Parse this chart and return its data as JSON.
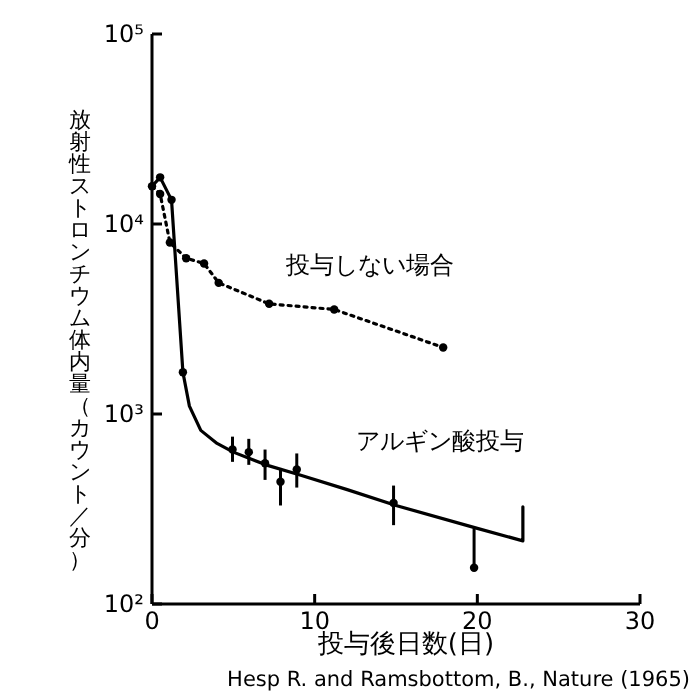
{
  "chart_data": {
    "type": "line",
    "xlabel": "投与後日数(日)",
    "ylabel": "放射性ストロンチウム体内量（カウント／分）",
    "annotations": [
      "Hesp R. and Ramsbottom, B., Nature (1965)"
    ],
    "log": "y",
    "grid": false,
    "marker": "circle",
    "xlim": [
      0,
      30
    ],
    "xticks": [
      0,
      10,
      20,
      30
    ],
    "ylim": [
      100,
      100000
    ],
    "yticks": [
      {
        "value": 100,
        "label": "10²"
      },
      {
        "value": 1000,
        "label": "10³"
      },
      {
        "value": 10000,
        "label": "10⁴"
      },
      {
        "value": 100000,
        "label": "10⁵"
      }
    ],
    "series": [
      {
        "name": "投与しない場合",
        "line_style": "dotted",
        "color": "#000000",
        "x": [
          0,
          0.5,
          1.1,
          2.1,
          3.2,
          4.1,
          7.2,
          11.2,
          17.9
        ],
        "values": [
          15800,
          14400,
          8000,
          6600,
          6200,
          4900,
          3800,
          3550,
          2240
        ]
      },
      {
        "name": "アルギン酸投与",
        "type": "line",
        "line_style": "solid",
        "marker": "none",
        "color": "#000000",
        "x": [
          0,
          0.5,
          1.2,
          1.9,
          2.3,
          3,
          4,
          5,
          7,
          9,
          12,
          15,
          20,
          22.8,
          22.8
        ],
        "values": [
          15800,
          17600,
          13400,
          1660,
          1100,
          820,
          700,
          630,
          540,
          480,
          400,
          330,
          250,
          215,
          325
        ]
      },
      {
        "type": "scatter",
        "color": "#000000",
        "x": [
          0.5,
          1.2,
          1.9,
          4.95,
          5.95,
          6.95,
          7.9,
          8.9,
          14.85,
          19.8
        ],
        "values": [
          17600,
          13400,
          1660,
          650,
          630,
          550,
          440,
          510,
          340,
          155
        ],
        "errors": [
          null,
          null,
          null,
          [
            560,
            760
          ],
          [
            540,
            740
          ],
          [
            450,
            650
          ],
          [
            330,
            520
          ],
          [
            410,
            620
          ],
          [
            260,
            420
          ],
          [
            155,
            250
          ]
        ]
      }
    ]
  }
}
